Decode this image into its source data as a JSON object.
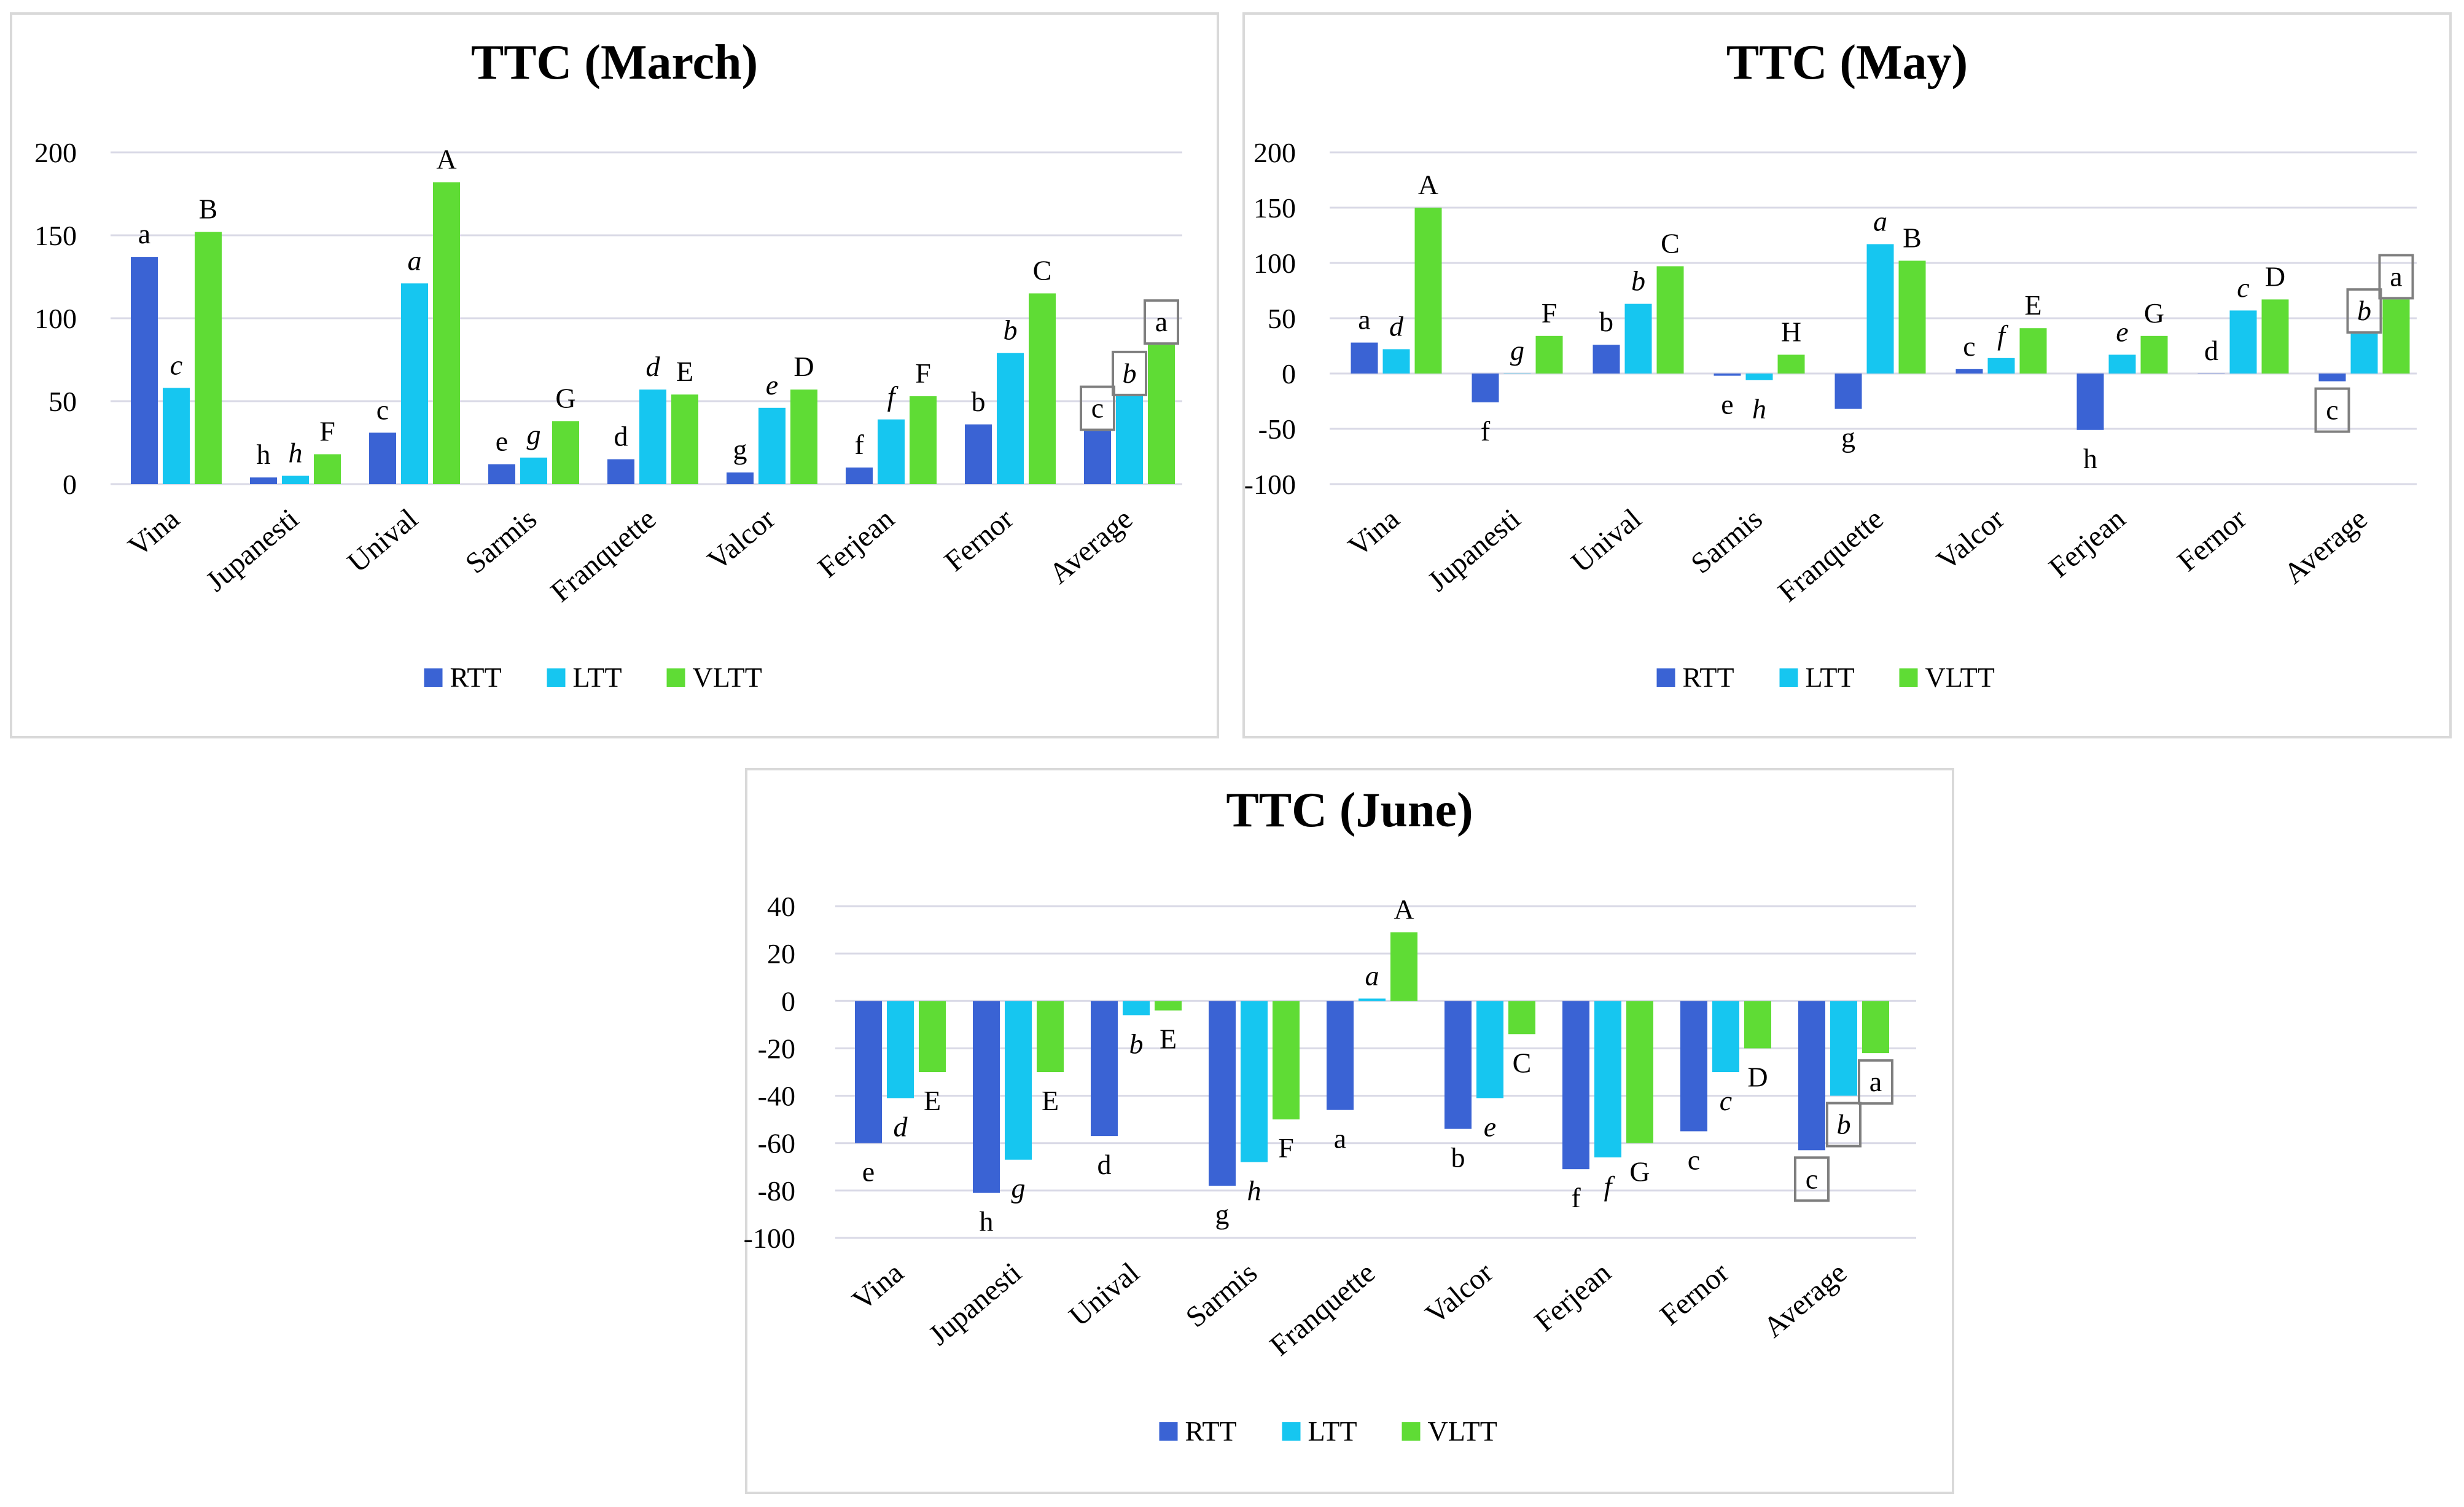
{
  "legend": [
    "RTT",
    "LTT",
    "VLTT"
  ],
  "colors": {
    "RTT": "#3a63d4",
    "LTT": "#16c6f0",
    "VLTT": "#5fdc35"
  },
  "chart_data": [
    {
      "type": "bar",
      "title": "TTC (March)",
      "categories": [
        "Vina",
        "Jupanesti",
        "Unival",
        "Sarmis",
        "Franquette",
        "Valcor",
        "Ferjean",
        "Fernor",
        "Average"
      ],
      "yticks": [
        "200",
        "150",
        "100",
        "50",
        "0"
      ],
      "ylim": [
        0,
        200
      ],
      "series": [
        {
          "name": "RTT",
          "values": [
            137,
            4,
            31,
            12,
            15,
            7,
            10,
            36,
            32
          ],
          "labels": [
            "a",
            "h",
            "c",
            "e",
            "d",
            "g",
            "f",
            "b",
            "c"
          ]
        },
        {
          "name": "LTT",
          "values": [
            58,
            5,
            121,
            16,
            57,
            46,
            39,
            79,
            53
          ],
          "labels": [
            "c",
            "h",
            "a",
            "g",
            "d",
            "e",
            "f",
            "b",
            "b"
          ]
        },
        {
          "name": "VLTT",
          "values": [
            152,
            18,
            182,
            38,
            54,
            57,
            53,
            115,
            84
          ],
          "labels": [
            "B",
            "F",
            "A",
            "G",
            "E",
            "D",
            "F",
            "C",
            "a"
          ]
        }
      ]
    },
    {
      "type": "bar",
      "title": "TTC (May)",
      "categories": [
        "Vina",
        "Jupanesti",
        "Unival",
        "Sarmis",
        "Franquette",
        "Valcor",
        "Ferjean",
        "Fernor",
        "Average"
      ],
      "yticks": [
        "200",
        "150",
        "100",
        "50",
        "0",
        "-50",
        "-100"
      ],
      "ylim": [
        -100,
        200
      ],
      "series": [
        {
          "name": "RTT",
          "values": [
            28,
            -26,
            26,
            -2,
            -32,
            4,
            -51,
            0,
            -7
          ],
          "labels": [
            "a",
            "f",
            "b",
            "e",
            "g",
            "c",
            "h",
            "d",
            "c"
          ]
        },
        {
          "name": "LTT",
          "values": [
            22,
            0,
            63,
            -6,
            117,
            14,
            17,
            57,
            36
          ],
          "labels": [
            "d",
            "g",
            "b",
            "h",
            "a",
            "f",
            "e",
            "c",
            "b"
          ]
        },
        {
          "name": "VLTT",
          "values": [
            150,
            34,
            97,
            17,
            102,
            41,
            34,
            67,
            67
          ],
          "labels": [
            "A",
            "F",
            "C",
            "H",
            "B",
            "E",
            "G",
            "D",
            "a"
          ]
        }
      ]
    },
    {
      "type": "bar",
      "title": "TTC (June)",
      "categories": [
        "Vina",
        "Jupanesti",
        "Unival",
        "Sarmis",
        "Franquette",
        "Valcor",
        "Ferjean",
        "Fernor",
        "Average"
      ],
      "yticks": [
        "40",
        "20",
        "0",
        "-20",
        "-40",
        "-60",
        "-80",
        "-100"
      ],
      "ylim": [
        -100,
        40
      ],
      "series": [
        {
          "name": "RTT",
          "values": [
            -60,
            -81,
            -57,
            -78,
            -46,
            -54,
            -71,
            -55,
            -63
          ],
          "labels": [
            "e",
            "h",
            "d",
            "g",
            "a",
            "b",
            "f",
            "c",
            "c"
          ]
        },
        {
          "name": "LTT",
          "values": [
            -41,
            -67,
            -6,
            -68,
            1,
            -41,
            -66,
            -30,
            -40
          ],
          "labels": [
            "d",
            "g",
            "b",
            "h",
            "a",
            "e",
            "f",
            "c",
            "b"
          ]
        },
        {
          "name": "VLTT",
          "values": [
            -30,
            -30,
            -4,
            -50,
            29,
            -14,
            -60,
            -20,
            -22
          ],
          "labels": [
            "E",
            "E",
            "E",
            "F",
            "A",
            "C",
            "G",
            "D",
            "a"
          ]
        }
      ]
    }
  ]
}
